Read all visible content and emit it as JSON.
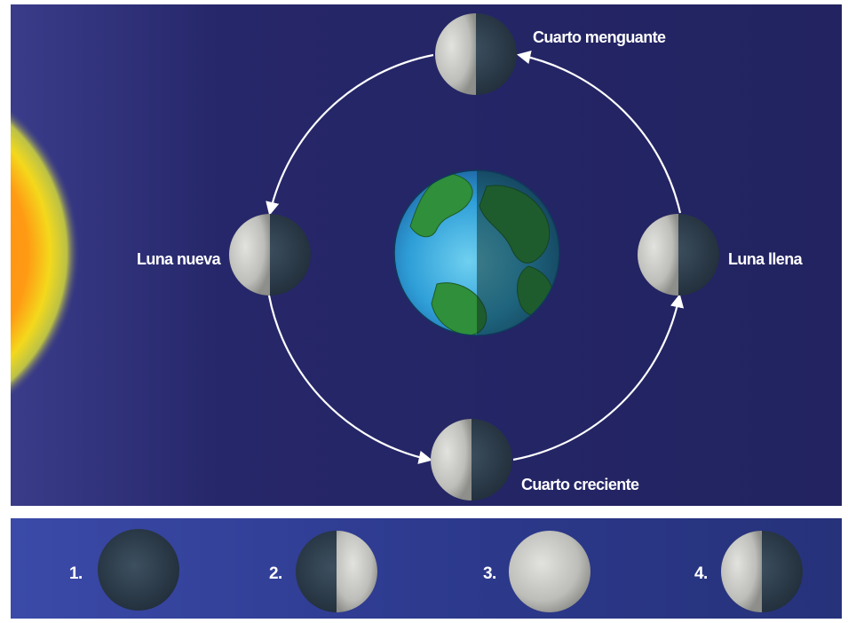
{
  "orbit_labels": {
    "top": "Cuarto menguante",
    "left": "Luna nueva",
    "right": "Luna llena",
    "bottom": "Cuarto creciente"
  },
  "phase_strip": [
    {
      "number": "1.",
      "phase": "new"
    },
    {
      "number": "2.",
      "phase": "waxing-half"
    },
    {
      "number": "3.",
      "phase": "full"
    },
    {
      "number": "4.",
      "phase": "waning-half"
    }
  ],
  "colors": {
    "space": "#23245e",
    "strip": "#2c3b8c",
    "sun_core": "#ff8a10",
    "sun_rim": "#f0e818",
    "ocean": "#2f9fd8",
    "land": "#2f8f3a",
    "moon_lit": "#c9c9c6",
    "moon_dark": "#2a3a4a",
    "arrow": "#ffffff"
  }
}
